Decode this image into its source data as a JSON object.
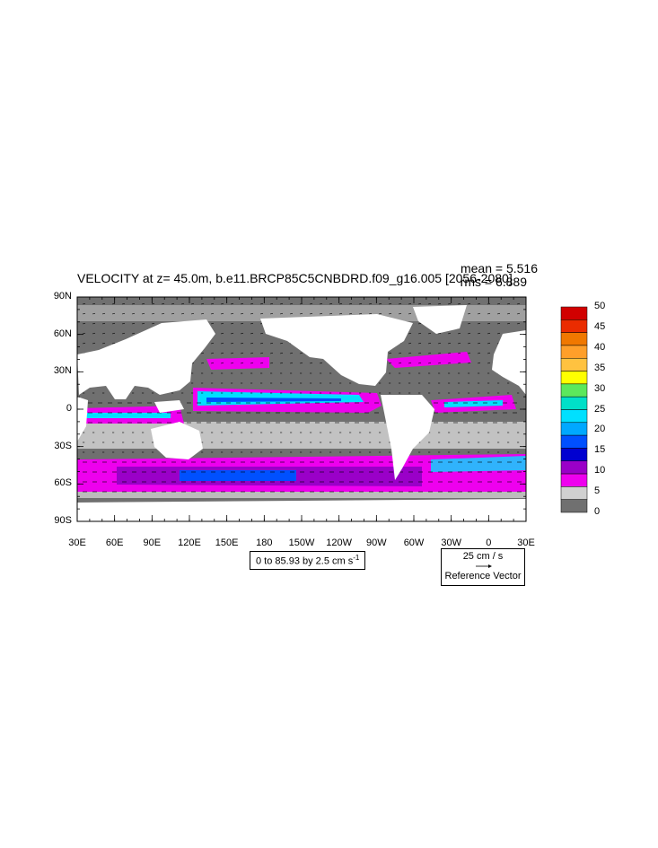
{
  "title": "VELOCITY at z=  45.0m, b.e11.BRCP85C5CNBDRD.f09_g16.005 [2056-2080]",
  "stats": {
    "mean": "mean = 5.516",
    "rms": "rms = 6.889"
  },
  "lat_labels": [
    "90N",
    "60N",
    "30N",
    "0",
    "30S",
    "60S",
    "90S"
  ],
  "lon_labels": [
    "30E",
    "60E",
    "90E",
    "120E",
    "150E",
    "180",
    "150W",
    "120W",
    "90W",
    "60W",
    "30W",
    "0",
    "30E"
  ],
  "contour_info": "0 to 85.93 by 2.5 cm s",
  "contour_info_sup": "-1",
  "reference_vector": {
    "magnitude": "25 cm / s",
    "label": "Reference Vector"
  },
  "colorbar": {
    "labels": [
      "50",
      "45",
      "40",
      "35",
      "30",
      "25",
      "20",
      "15",
      "10",
      "5",
      "0"
    ],
    "colors": [
      "#d10000",
      "#ea2c00",
      "#f07800",
      "#ff9f2a",
      "#ffc240",
      "#ffff00",
      "#5ce85c",
      "#00e0c8",
      "#00e0ff",
      "#00a8ff",
      "#0050ff",
      "#0000d0",
      "#9a00c8",
      "#ee00ee",
      "#d0d0d0",
      "#707070"
    ]
  },
  "map_colors": {
    "land": "#ffffff",
    "slow": "#707070",
    "light": "#d0d0d0",
    "magenta": "#ee00ee",
    "purple": "#9a00c8",
    "cyan": "#00e0ff",
    "blue": "#0050ff"
  }
}
